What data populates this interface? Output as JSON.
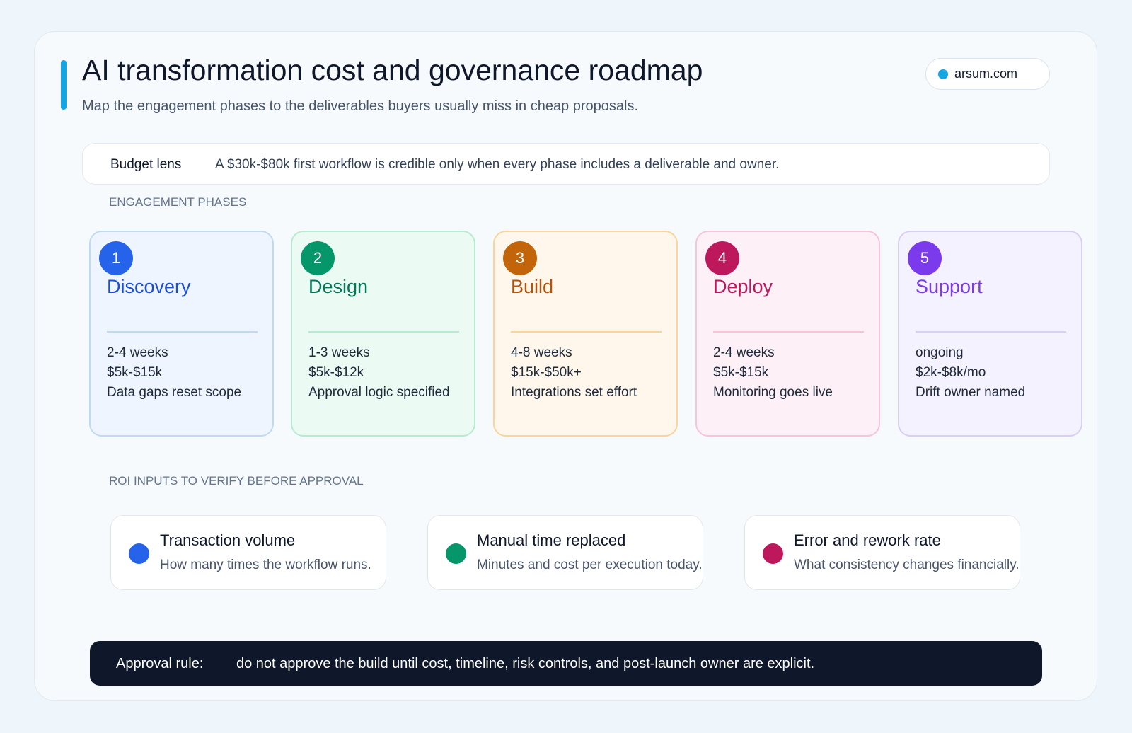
{
  "header": {
    "title": "AI transformation cost and governance roadmap",
    "subtitle": "Map the engagement phases to the deliverables buyers usually miss in cheap proposals.",
    "badge": "arsum.com"
  },
  "budget": {
    "label": "Budget lens",
    "text": "A $30k-$80k first workflow is credible only when every phase includes a deliverable and owner."
  },
  "phases": {
    "heading": "ENGAGEMENT PHASES",
    "items": [
      {
        "number": "1",
        "name": "Discovery",
        "duration": "2-4 weeks",
        "cost": "$5k-$15k",
        "note": "Data gaps reset scope"
      },
      {
        "number": "2",
        "name": "Design",
        "duration": "1-3 weeks",
        "cost": "$5k-$12k",
        "note": "Approval logic specified"
      },
      {
        "number": "3",
        "name": "Build",
        "duration": "4-8 weeks",
        "cost": "$15k-$50k+",
        "note": "Integrations set effort"
      },
      {
        "number": "4",
        "name": "Deploy",
        "duration": "2-4 weeks",
        "cost": "$5k-$15k",
        "note": "Monitoring goes live"
      },
      {
        "number": "5",
        "name": "Support",
        "duration": "ongoing",
        "cost": "$2k-$8k/mo",
        "note": "Drift owner named"
      }
    ]
  },
  "roi": {
    "heading": "ROI INPUTS TO VERIFY BEFORE APPROVAL",
    "items": [
      {
        "title": "Transaction volume",
        "description": "How many times the workflow runs."
      },
      {
        "title": "Manual time replaced",
        "description": "Minutes and cost per execution today."
      },
      {
        "title": "Error and rework rate",
        "description": "What consistency changes financially."
      }
    ]
  },
  "approval": {
    "label": "Approval rule:",
    "text": "do not approve the build until cost, timeline, risk controls, and post-launch owner are explicit."
  }
}
